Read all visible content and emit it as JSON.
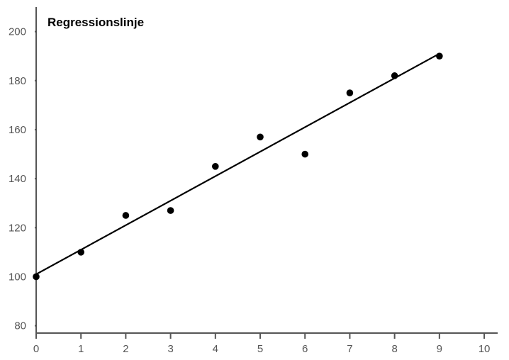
{
  "chart_data": {
    "type": "scatter",
    "title": "Regressionslinje",
    "xlabel": "",
    "ylabel": "",
    "x": [
      0,
      1,
      2,
      3,
      4,
      5,
      6,
      7,
      8,
      9
    ],
    "y": [
      100,
      110,
      125,
      127,
      145,
      157,
      150,
      175,
      182,
      190
    ],
    "regression_line": {
      "x": [
        0,
        9
      ],
      "y": [
        101,
        191
      ]
    },
    "xlim": [
      0,
      10.3
    ],
    "ylim": [
      77,
      210
    ],
    "x_ticks": [
      "0",
      "1",
      "2",
      "3",
      "4",
      "5",
      "6",
      "7",
      "8",
      "9",
      "10"
    ],
    "y_ticks": [
      "80",
      "100",
      "120",
      "140",
      "160",
      "180",
      "200"
    ],
    "grid": false,
    "colors": {
      "points": "#000000",
      "line": "#000000",
      "axis": "#555555"
    }
  }
}
